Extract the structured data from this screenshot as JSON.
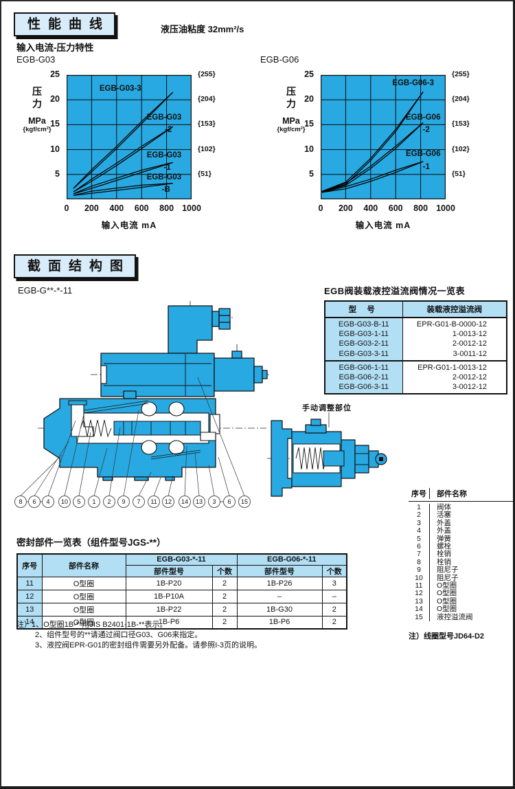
{
  "sections": {
    "performance": {
      "title": "性能曲线",
      "viscosity": "液压油粘度 32mm²/s",
      "subheading": "输入电流-压力特性"
    },
    "structure": {
      "title": "截面结构图",
      "model": "EGB-G**-*-11"
    }
  },
  "chart_data": [
    {
      "type": "line",
      "title": "EGB-G03",
      "xlabel": "输入电流 mA",
      "ylabel_lines": [
        "压",
        "力",
        "MPa",
        "{kgf/cm²}"
      ],
      "xlim": [
        0,
        1000
      ],
      "ylim": [
        0,
        25
      ],
      "xticks": [
        0,
        200,
        400,
        600,
        800,
        1000
      ],
      "yticks": [
        25,
        20,
        15,
        10,
        5
      ],
      "right_axis_labels": [
        "{255}",
        "{204}",
        "{153}",
        "{102}",
        "{51}"
      ],
      "grid": true,
      "legend_position": "none",
      "series": [
        {
          "name": "EGB-G03-3",
          "points": [
            [
              55,
              2.2
            ],
            [
              200,
              5.5
            ],
            [
              400,
              10.2
            ],
            [
              600,
              15.2
            ],
            [
              850,
              21.5
            ]
          ]
        },
        {
          "name": "EGB-G03-2",
          "points": [
            [
              55,
              1.5
            ],
            [
              200,
              3.6
            ],
            [
              400,
              6.8
            ],
            [
              600,
              10.2
            ],
            [
              850,
              14.6
            ]
          ]
        },
        {
          "name": "EGB-G03-1",
          "points": [
            [
              55,
              1.1
            ],
            [
              200,
              2.2
            ],
            [
              400,
              3.8
            ],
            [
              600,
              5.4
            ],
            [
              850,
              7.4
            ]
          ]
        },
        {
          "name": "EGB-G03-B",
          "points": [
            [
              55,
              0.8
            ],
            [
              200,
              1.2
            ],
            [
              400,
              1.8
            ],
            [
              600,
              2.4
            ],
            [
              850,
              3.2
            ]
          ]
        }
      ],
      "annotations": [
        {
          "text": "EGB-G03-3",
          "x": 430,
          "y": 22.3
        },
        {
          "text": "EGB-G03",
          "x": 780,
          "y": 16.5
        },
        {
          "text": "-2",
          "x": 815,
          "y": 13.9
        },
        {
          "text": "EGB-G03",
          "x": 780,
          "y": 8.9
        },
        {
          "text": "-1",
          "x": 805,
          "y": 6.4
        },
        {
          "text": "EGB-G03",
          "x": 780,
          "y": 4.4
        },
        {
          "text": "-B",
          "x": 795,
          "y": 1.9
        }
      ]
    },
    {
      "type": "line",
      "title": "EGB-G06",
      "xlabel": "输入电流 mA",
      "ylabel_lines": [
        "压",
        "力",
        "MPa",
        "{kgf/cm²}"
      ],
      "xlim": [
        0,
        1000
      ],
      "ylim": [
        0,
        25
      ],
      "xticks": [
        0,
        200,
        400,
        600,
        800,
        1000
      ],
      "yticks": [
        25,
        20,
        15,
        10,
        5
      ],
      "right_axis_labels": [
        "{255}",
        "{204}",
        "{153}",
        "{102}",
        "{51}"
      ],
      "grid": true,
      "legend_position": "none",
      "series": [
        {
          "name": "EGB-G06-3",
          "points": [
            [
              10,
              1.6
            ],
            [
              200,
              3.0
            ],
            [
              400,
              7.8
            ],
            [
              600,
              13.6
            ],
            [
              820,
              21.6
            ]
          ]
        },
        {
          "name": "EGB-G06-2",
          "points": [
            [
              10,
              1.5
            ],
            [
              200,
              2.8
            ],
            [
              400,
              6.2
            ],
            [
              600,
              10.2
            ],
            [
              820,
              15.4
            ]
          ]
        },
        {
          "name": "EGB-G06-1",
          "points": [
            [
              10,
              1.4
            ],
            [
              200,
              2.1
            ],
            [
              400,
              3.6
            ],
            [
              600,
              5.4
            ],
            [
              820,
              7.6
            ]
          ]
        }
      ],
      "annotations": [
        {
          "text": "EGB-G06-3",
          "x": 740,
          "y": 23.4
        },
        {
          "text": "EGB-G06",
          "x": 820,
          "y": 16.4
        },
        {
          "text": "-2",
          "x": 845,
          "y": 13.9
        },
        {
          "text": "EGB-G06",
          "x": 820,
          "y": 9.1
        },
        {
          "text": "-1",
          "x": 845,
          "y": 6.5
        }
      ]
    }
  ],
  "relief_table": {
    "title": "EGB阀装载液控溢流阀情况一览表",
    "headers": [
      "型 号",
      "装载液控溢流阀"
    ],
    "groups": [
      {
        "rows": [
          [
            "EGB-G03-B-11",
            "EPR-G01-B-0000-12"
          ],
          [
            "EGB-G03-1-11",
            "1-0013-12"
          ],
          [
            "EGB-G03-2-11",
            "2-0012-12"
          ],
          [
            "EGB-G03-3-11",
            "3-0011-12"
          ]
        ]
      },
      {
        "rows": [
          [
            "EGB-G06-1-11",
            "EPR-G01-1-0013-12"
          ],
          [
            "EGB-G06-2-11",
            "2-0012-12"
          ],
          [
            "EGB-G06-3-11",
            "3-0012-12"
          ]
        ]
      }
    ]
  },
  "diagram": {
    "manual_adjust_label": "手动调整部位",
    "callouts": [
      "8",
      "6",
      "4",
      "10",
      "5",
      "1",
      "2",
      "9",
      "7",
      "11",
      "12",
      "14",
      "13",
      "3",
      "6",
      "15"
    ],
    "linked_pairs": [
      [
        0,
        1
      ],
      [
        1,
        2
      ],
      [
        13,
        14
      ]
    ]
  },
  "parts_list": {
    "headers": [
      "序号",
      "部件名称"
    ],
    "rows": [
      [
        "1",
        "阀体"
      ],
      [
        "2",
        "活塞"
      ],
      [
        "3",
        "外盖"
      ],
      [
        "4",
        "外盖"
      ],
      [
        "5",
        "弹簧"
      ],
      [
        "6",
        "螺栓"
      ],
      [
        "7",
        "栓销"
      ],
      [
        "8",
        "栓销"
      ],
      [
        "9",
        "阻尼子"
      ],
      [
        "10",
        "阻尼子"
      ],
      [
        "11",
        "O型圈"
      ],
      [
        "12",
        "O型圈"
      ],
      [
        "13",
        "O型圈"
      ],
      [
        "14",
        "O型圈"
      ],
      [
        "15",
        "液控溢流阀"
      ]
    ],
    "note": "注）线圈型号JD64-D2"
  },
  "seal_table": {
    "title": "密封部件一览表（组件型号JGS-**）",
    "col1": "序号",
    "col2": "部件名称",
    "group_headers": [
      "EGB-G03-*-11",
      "EGB-G06-*-11"
    ],
    "sub_headers": [
      "部件型号",
      "个数",
      "部件型号",
      "个数"
    ],
    "rows": [
      [
        "11",
        "O型圈",
        "1B-P20",
        "2",
        "1B-P26",
        "3"
      ],
      [
        "12",
        "O型圈",
        "1B-P10A",
        "2",
        "–",
        "–"
      ],
      [
        "13",
        "O型圈",
        "1B-P22",
        "2",
        "1B-G30",
        "2"
      ],
      [
        "14",
        "O型圈",
        "1B-P6",
        "2",
        "1B-P6",
        "2"
      ]
    ]
  },
  "notes": [
    "注）1、O型圈1B-**用JIS B2401-1B-**表示。",
    "2、组件型号的**请通过阀口径G03、G06来指定。",
    "3、液控阀EPR-G01的密封组件需要另外配备。请参照I-3页的说明。"
  ],
  "colors": {
    "plot_cyan": "#29a9e1",
    "table_cyan": "#b3dff5",
    "box_bg": "#d9ecf9"
  }
}
